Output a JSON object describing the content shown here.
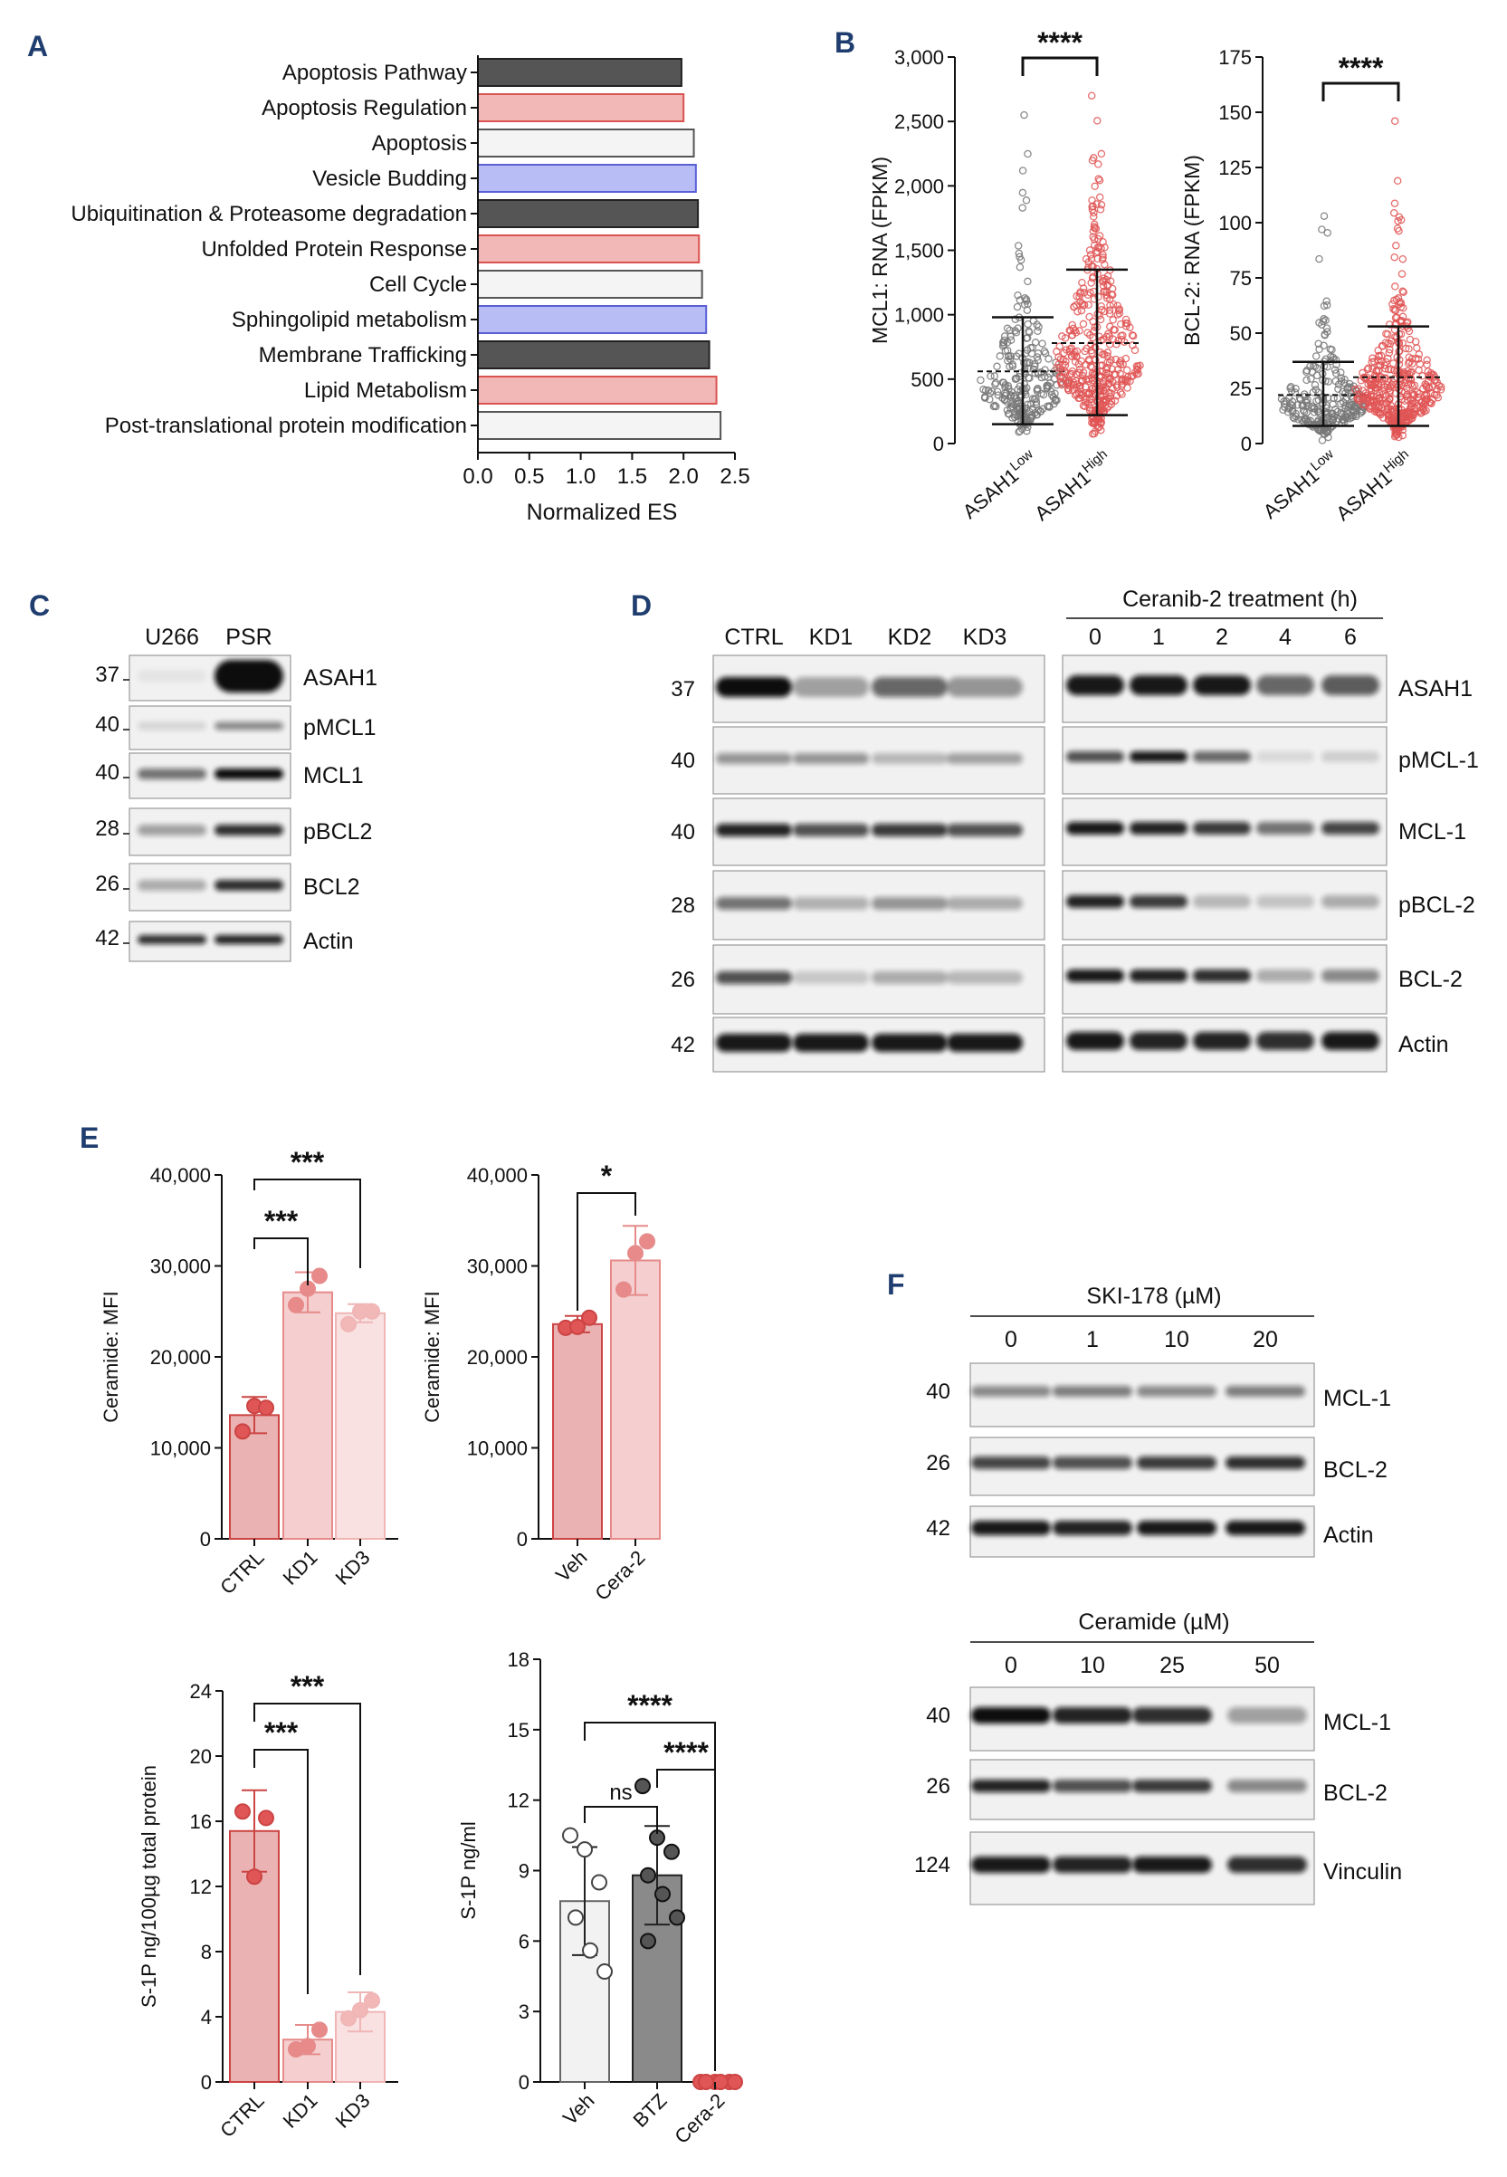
{
  "panels": {
    "A": {
      "label": "A"
    },
    "B": {
      "label": "B"
    },
    "C": {
      "label": "C"
    },
    "D": {
      "label": "D"
    },
    "E": {
      "label": "E"
    },
    "F": {
      "label": "F"
    }
  },
  "chart_data": [
    {
      "id": "A",
      "type": "bar",
      "orientation": "horizontal",
      "categories": [
        "Apoptosis Pathway",
        "Apoptosis Regulation",
        "Apoptosis",
        "Vesicle Budding",
        "Ubiquitination & Proteasome degradation",
        "Unfolded Protein Response",
        "Cell Cycle",
        "Sphingolipid metabolism",
        "Membrane Trafficking",
        "Lipid Metabolism",
        "Post-translational protein modification"
      ],
      "values": [
        1.98,
        2.0,
        2.1,
        2.12,
        2.14,
        2.15,
        2.18,
        2.22,
        2.25,
        2.32,
        2.36
      ],
      "colors": [
        "#555555",
        "#f2b8b8",
        "#f4f4f4",
        "#b8bef5",
        "#555555",
        "#f2b8b8",
        "#f4f4f4",
        "#b8bef5",
        "#555555",
        "#f2b8b8",
        "#f4f4f4"
      ],
      "edges": [
        "#222222",
        "#d9534f",
        "#555555",
        "#5a5fd6",
        "#222222",
        "#d9534f",
        "#555555",
        "#5a5fd6",
        "#222222",
        "#d9534f",
        "#555555"
      ],
      "xlabel": "Normalized ES",
      "xlim": [
        0,
        2.5
      ],
      "xticks": [
        "0.0",
        "0.5",
        "1.0",
        "1.5",
        "2.0",
        "2.5"
      ]
    },
    {
      "id": "B1",
      "type": "scatter",
      "categories": [
        "ASAH1Low",
        "ASAH1High"
      ],
      "cat_main": [
        "ASAH1",
        "ASAH1"
      ],
      "cat_sup": [
        "Low",
        "High"
      ],
      "ylabel": "MCL1: RNA (FPKM)",
      "ylim": [
        0,
        3000
      ],
      "yticks": [
        "0",
        "500",
        "1,000",
        "1,500",
        "2,000",
        "2,500",
        "3,000"
      ],
      "series": [
        {
          "name": "ASAH1Low",
          "mean": 560,
          "sd_low": 150,
          "sd_high": 980,
          "max": 2550,
          "color": "#777777"
        },
        {
          "name": "ASAH1High",
          "mean": 780,
          "sd_low": 220,
          "sd_high": 1350,
          "max": 2700,
          "color": "#e05555"
        }
      ],
      "significance": "****"
    },
    {
      "id": "B2",
      "type": "scatter",
      "categories": [
        "ASAH1Low",
        "ASAH1High"
      ],
      "cat_main": [
        "ASAH1",
        "ASAH1"
      ],
      "cat_sup": [
        "Low",
        "High"
      ],
      "ylabel": "BCL-2: RNA (FPKM)",
      "ylim": [
        0,
        175
      ],
      "yticks": [
        "0",
        "25",
        "50",
        "75",
        "100",
        "125",
        "150",
        "175"
      ],
      "series": [
        {
          "name": "ASAH1Low",
          "mean": 22,
          "sd_low": 8,
          "sd_high": 37,
          "max": 103,
          "color": "#777777"
        },
        {
          "name": "ASAH1High",
          "mean": 30,
          "sd_low": 8,
          "sd_high": 53,
          "max": 146,
          "color": "#e05555"
        }
      ],
      "significance": "****"
    },
    {
      "id": "E1",
      "type": "bar",
      "categories": [
        "CTRL",
        "KD1",
        "KD3"
      ],
      "values": [
        13600,
        27100,
        24800
      ],
      "sd": [
        2000,
        2200,
        1000
      ],
      "points": [
        [
          11800,
          14600,
          14400
        ],
        [
          25700,
          27500,
          28900
        ],
        [
          23600,
          25000,
          25000
        ]
      ],
      "ylabel": "Ceramide: MFI",
      "ylim": [
        0,
        40000
      ],
      "yticks": [
        "0",
        "10,000",
        "20,000",
        "30,000",
        "40,000"
      ],
      "significance": [
        {
          "from": 0,
          "to": 1,
          "label": "***"
        },
        {
          "from": 0,
          "to": 2,
          "label": "***"
        }
      ]
    },
    {
      "id": "E2",
      "type": "bar",
      "categories": [
        "Veh",
        "Cera-2"
      ],
      "values": [
        23600,
        30600
      ],
      "sd": [
        900,
        3800
      ],
      "points": [
        [
          23200,
          23300,
          24300
        ],
        [
          27400,
          31400,
          32700
        ]
      ],
      "ylabel": "Ceramide: MFI",
      "ylim": [
        0,
        40000
      ],
      "yticks": [
        "0",
        "10,000",
        "20,000",
        "30,000",
        "40,000"
      ],
      "significance": [
        {
          "from": 0,
          "to": 1,
          "label": "*"
        }
      ]
    },
    {
      "id": "E3",
      "type": "bar",
      "categories": [
        "CTRL",
        "KD1",
        "KD3"
      ],
      "values": [
        15.4,
        2.6,
        4.3
      ],
      "sd": [
        2.5,
        0.9,
        1.2
      ],
      "points": [
        [
          16.6,
          12.6,
          16.2
        ],
        [
          2.0,
          2.2,
          3.2
        ],
        [
          3.9,
          4.4,
          5.0
        ]
      ],
      "ylabel": "S-1P ng/100µg total protein",
      "ylim": [
        0,
        24
      ],
      "yticks": [
        "0",
        "4",
        "8",
        "12",
        "16",
        "20",
        "24"
      ],
      "significance": [
        {
          "from": 0,
          "to": 1,
          "label": "***"
        },
        {
          "from": 0,
          "to": 2,
          "label": "***"
        }
      ]
    },
    {
      "id": "E4",
      "type": "bar",
      "categories": [
        "Veh",
        "BTZ",
        "Cera-2"
      ],
      "values": [
        7.7,
        8.8,
        0.0
      ],
      "sd": [
        2.3,
        2.1,
        0.05
      ],
      "points": [
        [
          10.5,
          9.9,
          8.5,
          7.0,
          5.6,
          4.7
        ],
        [
          12.6,
          10.4,
          9.8,
          8.8,
          8.0,
          7.0,
          6.0
        ],
        [
          0,
          0,
          0,
          0,
          0,
          0
        ]
      ],
      "ylabel": "S-1P ng/ml",
      "ylim": [
        0,
        18
      ],
      "yticks": [
        "0",
        "3",
        "6",
        "9",
        "12",
        "15",
        "18"
      ],
      "significance": [
        {
          "from": 0,
          "to": 1,
          "label": "ns"
        },
        {
          "from": 0,
          "to": 2,
          "label": "****"
        },
        {
          "from": 1,
          "to": 2,
          "label": "****"
        }
      ]
    }
  ],
  "blotC": {
    "lanes": [
      "U266",
      "PSR"
    ],
    "rows": [
      {
        "mw": "37",
        "name": "ASAH1"
      },
      {
        "mw": "40",
        "name": "pMCL1"
      },
      {
        "mw": "40",
        "name": "MCL1"
      },
      {
        "mw": "28",
        "name": "pBCL2"
      },
      {
        "mw": "26",
        "name": "BCL2"
      },
      {
        "mw": "42",
        "name": "Actin"
      }
    ]
  },
  "blotD": {
    "lanes_left": [
      "CTRL",
      "KD1",
      "KD2",
      "KD3"
    ],
    "treatment_title": "Ceranib-2 treatment (h)",
    "lanes_right": [
      "0",
      "1",
      "2",
      "4",
      "6"
    ],
    "rows": [
      {
        "mw": "37",
        "name": "ASAH1"
      },
      {
        "mw": "40",
        "name": "pMCL-1"
      },
      {
        "mw": "40",
        "name": "MCL-1"
      },
      {
        "mw": "28",
        "name": "pBCL-2"
      },
      {
        "mw": "26",
        "name": "BCL-2"
      },
      {
        "mw": "42",
        "name": "Actin"
      }
    ]
  },
  "blotF1": {
    "title": "SKI-178 (µM)",
    "lanes": [
      "0",
      "1",
      "10",
      "20"
    ],
    "rows": [
      {
        "mw": "40",
        "name": "MCL-1"
      },
      {
        "mw": "26",
        "name": "BCL-2"
      },
      {
        "mw": "42",
        "name": "Actin"
      }
    ]
  },
  "blotF2": {
    "title": "Ceramide (µM)",
    "lanes": [
      "0",
      "10",
      "25",
      "50"
    ],
    "rows": [
      {
        "mw": "40",
        "name": "MCL-1"
      },
      {
        "mw": "26",
        "name": "BCL-2"
      },
      {
        "mw": "124",
        "name": "Vinculin"
      }
    ]
  }
}
